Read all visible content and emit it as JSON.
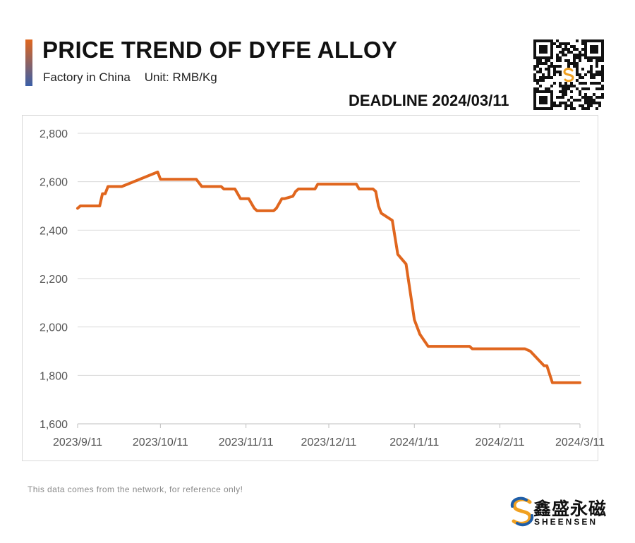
{
  "header": {
    "title": "PRICE TREND OF DYFE ALLOY",
    "subtitle_location": "Factory in China",
    "subtitle_unit": "Unit: RMB/Kg",
    "deadline": "DEADLINE 2024/03/11"
  },
  "footer": {
    "note": "This data comes from the network, for reference only!",
    "brand_cn": "鑫盛永磁",
    "brand_en": "SHEENSEN"
  },
  "colors": {
    "accent_top": "#e0661e",
    "accent_bottom": "#3a5fa8",
    "line": "#e0661e",
    "grid": "#d9d9d9",
    "axis_text": "#555555"
  },
  "icons": {
    "qr": "qr-code-icon",
    "logo": "sheensen-logo-icon"
  },
  "chart_data": {
    "type": "line",
    "title": "PRICE TREND OF DYFE ALLOY",
    "ylim": [
      1600,
      2800
    ],
    "yticks": [
      1600,
      1800,
      2000,
      2200,
      2400,
      2600,
      2800
    ],
    "ytick_labels": [
      "1,600",
      "1,800",
      "2,000",
      "2,200",
      "2,400",
      "2,600",
      "2,800"
    ],
    "xlim": [
      "2023-09-11",
      "2024-03-11"
    ],
    "xticks": [
      "2023-09-11",
      "2023-10-11",
      "2023-11-11",
      "2023-12-11",
      "2024-01-11",
      "2024-02-11",
      "2024-03-11"
    ],
    "xtick_labels": [
      "2023/9/11",
      "2023/10/11",
      "2023/11/11",
      "2023/12/11",
      "2024/1/11",
      "2024/2/11",
      "2024/3/11"
    ],
    "grid": "horizontal",
    "legend": "none",
    "series": [
      {
        "x": [
          "2023-09-11",
          "2023-09-12",
          "2023-09-19",
          "2023-09-20",
          "2023-09-21",
          "2023-09-22",
          "2023-09-27",
          "2023-10-10",
          "2023-10-11",
          "2023-10-24",
          "2023-10-26",
          "2023-11-02",
          "2023-11-03",
          "2023-11-07",
          "2023-11-08",
          "2023-11-09",
          "2023-11-12",
          "2023-11-14",
          "2023-11-15",
          "2023-11-21",
          "2023-11-22",
          "2023-11-24",
          "2023-11-25",
          "2023-11-28",
          "2023-11-29",
          "2023-11-30",
          "2023-12-06",
          "2023-12-07",
          "2023-12-21",
          "2023-12-22",
          "2023-12-27",
          "2023-12-28",
          "2023-12-29",
          "2023-12-30",
          "2024-01-03",
          "2024-01-05",
          "2024-01-08",
          "2024-01-11",
          "2024-01-13",
          "2024-01-16",
          "2024-01-17",
          "2024-01-31",
          "2024-02-01",
          "2024-02-19",
          "2024-02-20",
          "2024-02-22",
          "2024-02-27",
          "2024-02-28",
          "2024-03-01",
          "2024-03-11"
        ],
        "values": [
          2490,
          2500,
          2500,
          2550,
          2550,
          2580,
          2580,
          2640,
          2610,
          2610,
          2580,
          2580,
          2570,
          2570,
          2550,
          2530,
          2530,
          2490,
          2480,
          2480,
          2490,
          2530,
          2530,
          2540,
          2560,
          2570,
          2570,
          2590,
          2590,
          2570,
          2570,
          2560,
          2500,
          2470,
          2440,
          2300,
          2260,
          2030,
          1970,
          1920,
          1920,
          1920,
          1910,
          1910,
          1910,
          1900,
          1840,
          1840,
          1770,
          1770
        ]
      }
    ]
  }
}
